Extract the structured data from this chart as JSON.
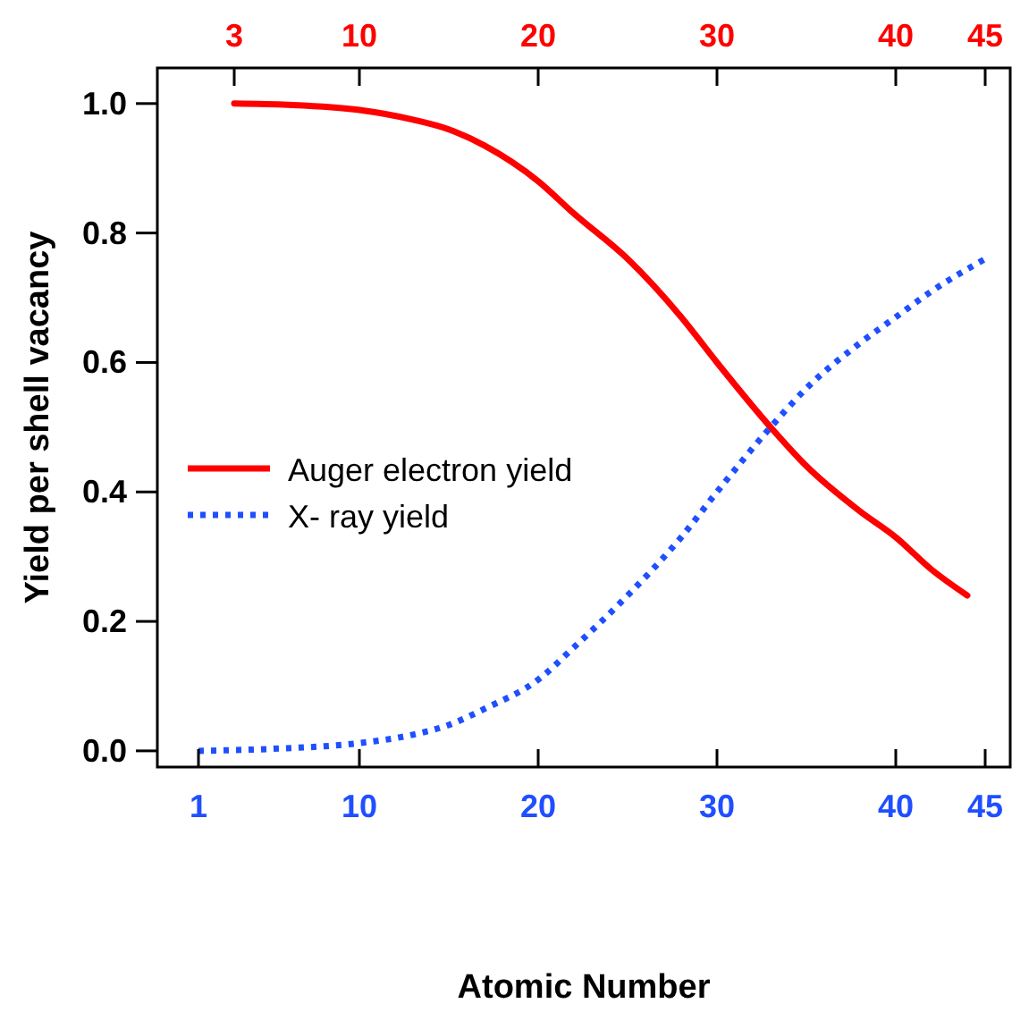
{
  "chart_data": {
    "type": "line",
    "xlabel": "Atomic Number",
    "ylabel": "Yield per shell vacancy",
    "xlim": [
      -1.3,
      46.4
    ],
    "xticks": [
      1,
      10,
      20,
      30,
      40,
      45
    ],
    "x2lim": [
      -1.3,
      46.4
    ],
    "x2ticks": [
      3,
      10,
      20,
      30,
      40,
      45
    ],
    "ylim": [
      -0.025,
      1.055
    ],
    "yticks": [
      {
        "value": 0,
        "label": "0.0"
      },
      {
        "value": 0.2,
        "label": "0.2"
      },
      {
        "value": 0.4,
        "label": "0.4"
      },
      {
        "value": 0.6,
        "label": "0.6"
      },
      {
        "value": 0.8,
        "label": "0.8"
      },
      {
        "value": 1,
        "label": "1.0"
      }
    ],
    "legend": "left",
    "grid": false,
    "marker": "none",
    "series": [
      {
        "name": "Auger electron yield",
        "color": "#ff0000",
        "line_style": "solid",
        "x": [
          3,
          6,
          10,
          13,
          15,
          17,
          20,
          22,
          25,
          28,
          30,
          33,
          35,
          38,
          40,
          42,
          44
        ],
        "values": [
          1.0,
          0.998,
          0.99,
          0.975,
          0.96,
          0.935,
          0.88,
          0.83,
          0.76,
          0.67,
          0.6,
          0.5,
          0.44,
          0.37,
          0.33,
          0.28,
          0.24
        ]
      },
      {
        "name": "X- ray yield",
        "color": "#1f4fff",
        "line_style": "dotted",
        "x": [
          1,
          5,
          10,
          13,
          15,
          17,
          20,
          22,
          25,
          28,
          30,
          33,
          35,
          38,
          40,
          42,
          45
        ],
        "values": [
          0.0,
          0.003,
          0.012,
          0.025,
          0.04,
          0.065,
          0.11,
          0.16,
          0.24,
          0.33,
          0.4,
          0.5,
          0.56,
          0.63,
          0.67,
          0.71,
          0.76
        ]
      }
    ]
  }
}
